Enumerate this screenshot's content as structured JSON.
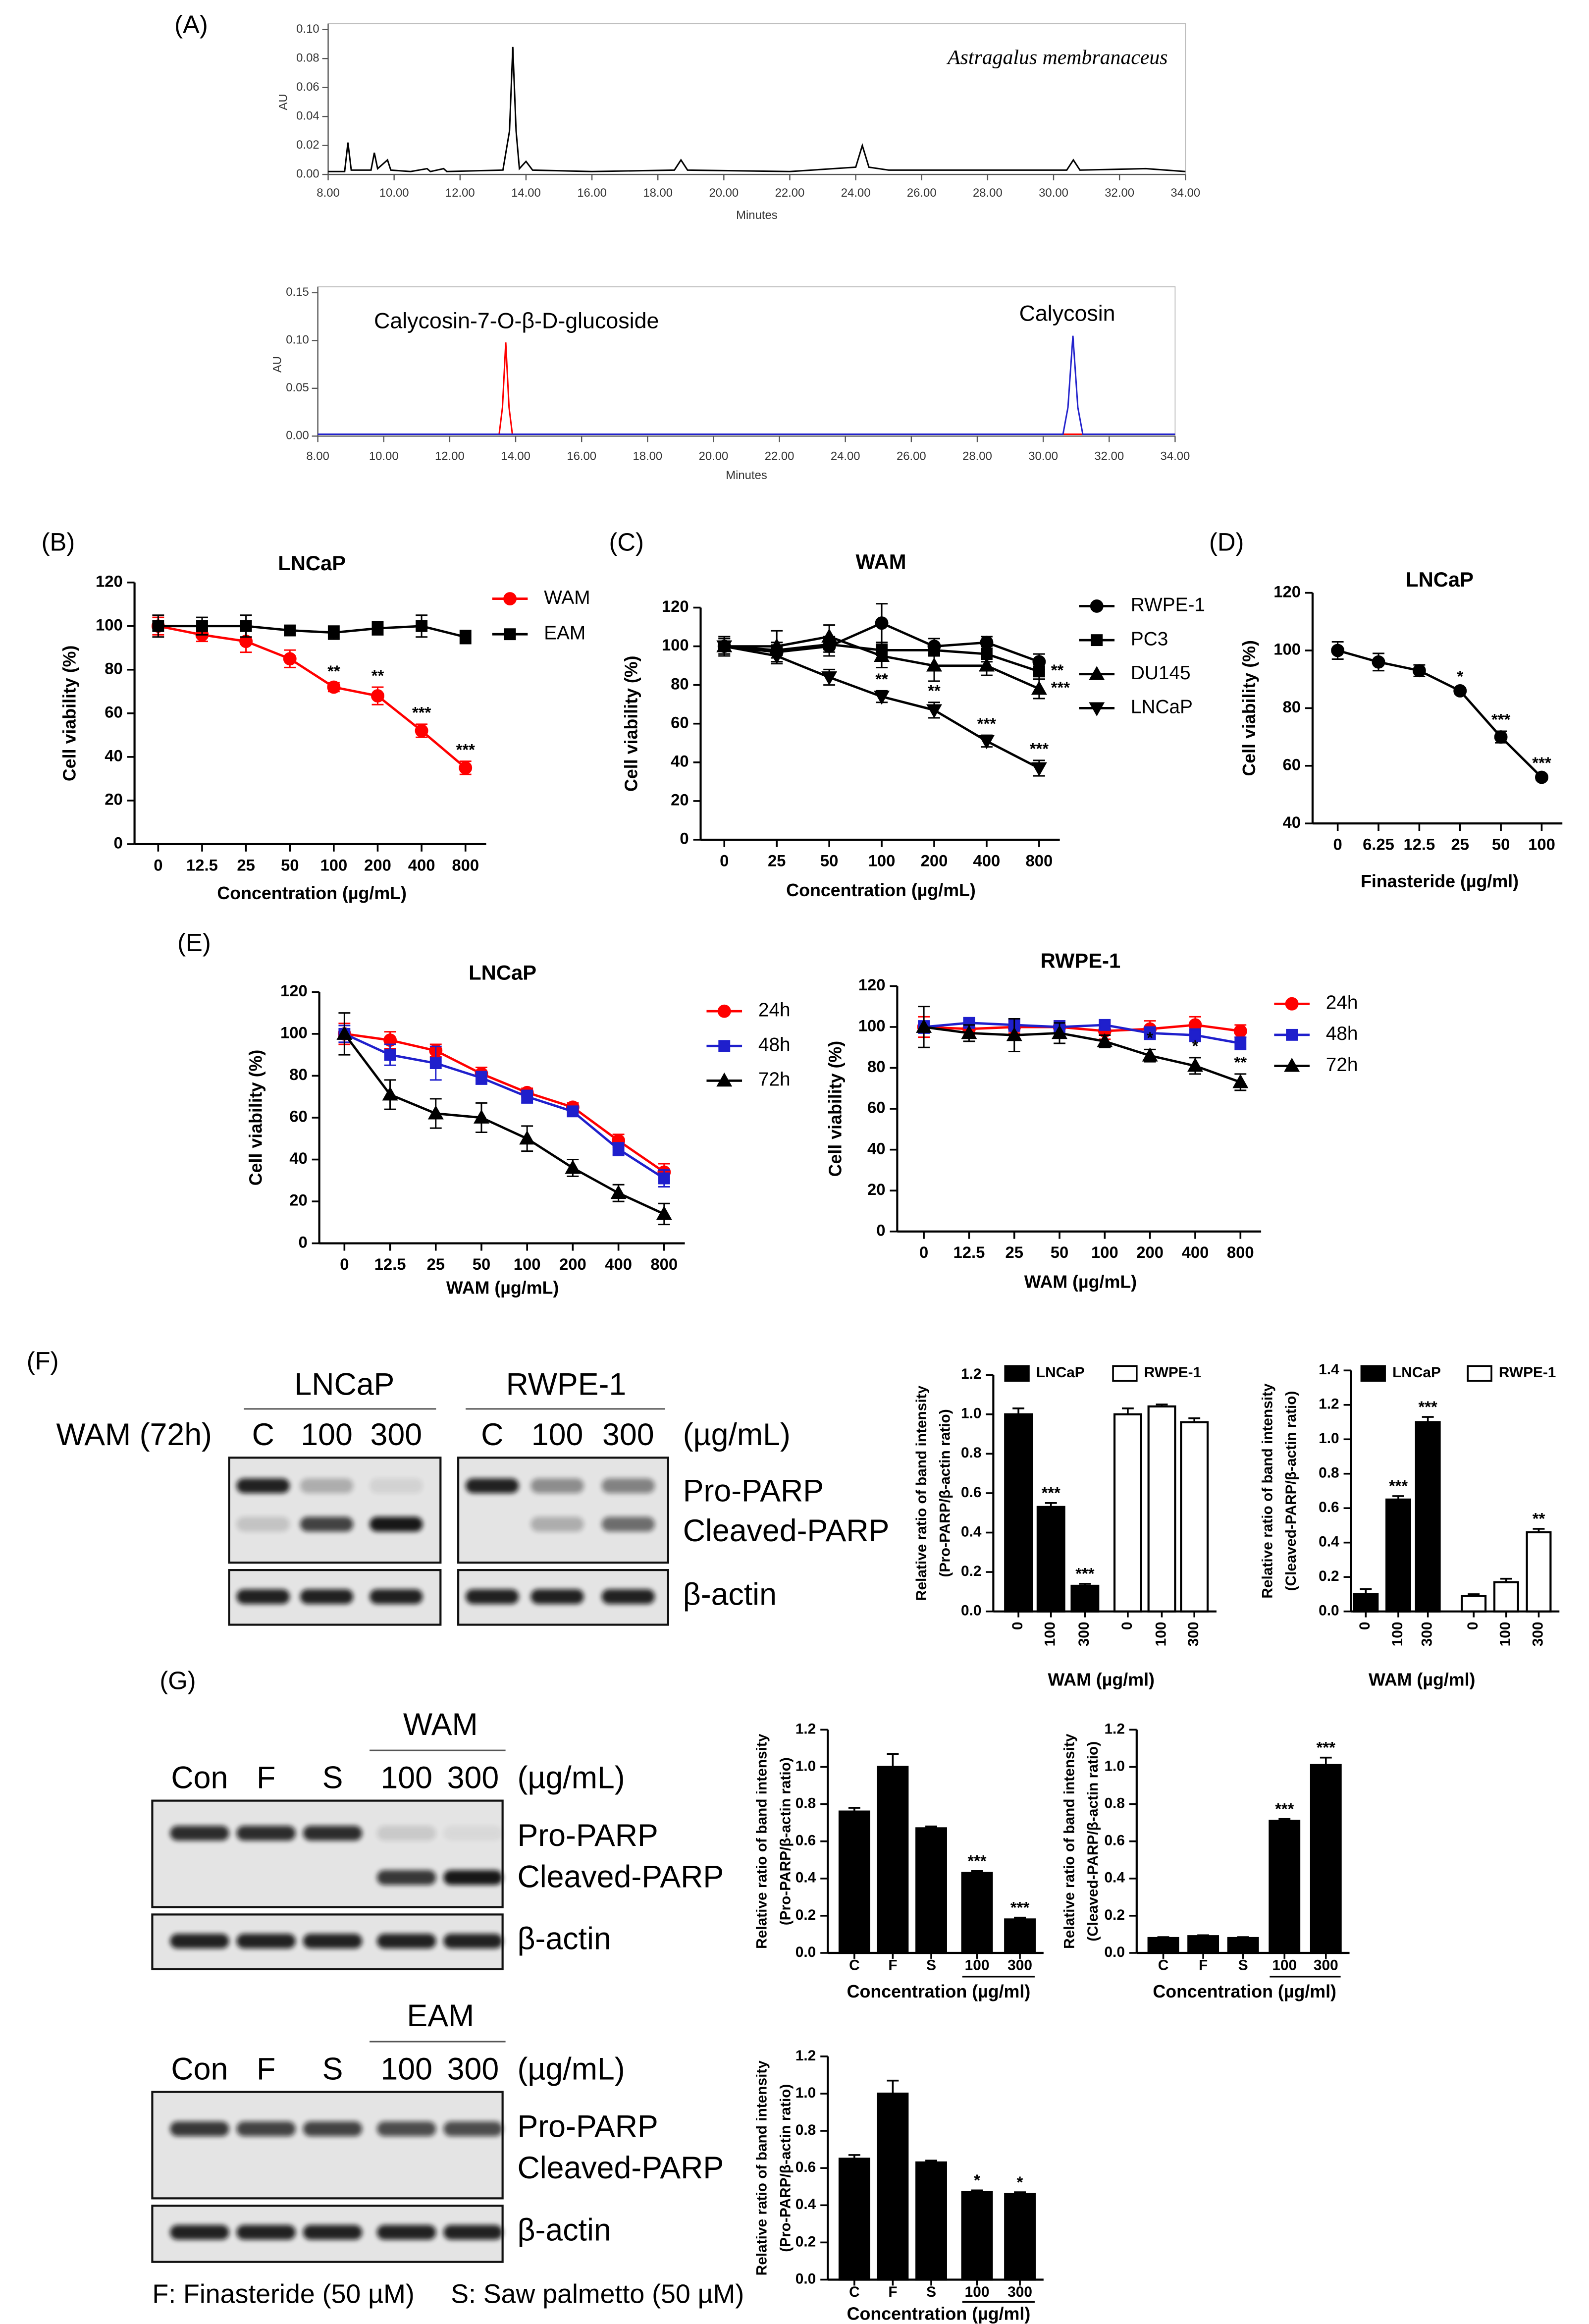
{
  "chart_data": [
    {
      "type": "chromatogram",
      "panel": "(A)",
      "xlabel": "Minutes",
      "ylabel": "AU",
      "xlim": [
        8,
        34
      ],
      "xticks": [
        {
          "value": 8,
          "label": "8.00"
        },
        {
          "value": 10,
          "label": "10.00"
        },
        {
          "value": 12,
          "label": "12.00"
        },
        {
          "value": 14,
          "label": "14.00"
        },
        {
          "value": 16,
          "label": "16.00"
        },
        {
          "value": 18,
          "label": "18.00"
        },
        {
          "value": 20,
          "label": "20.00"
        },
        {
          "value": 22,
          "label": "22.00"
        },
        {
          "value": 24,
          "label": "24.00"
        },
        {
          "value": 26,
          "label": "26.00"
        },
        {
          "value": 28,
          "label": "28.00"
        },
        {
          "value": 30,
          "label": "30.00"
        },
        {
          "value": 32,
          "label": "32.00"
        },
        {
          "value": 34,
          "label": "34.00"
        }
      ],
      "ylim": [
        0,
        0.1
      ],
      "yticks": [
        {
          "value": 0,
          "label": "0.00"
        },
        0.02,
        0.04,
        0.06,
        0.08,
        {
          "value": 0.1,
          "label": "0.10"
        }
      ],
      "series": [
        {
          "name": "Astragalus membranaceus",
          "color": "#000000",
          "x": [
            8,
            8.5,
            8.6,
            8.7,
            9.3,
            9.4,
            9.5,
            9.8,
            9.9,
            10.5,
            11,
            11.1,
            11.5,
            11.6,
            13.3,
            13.5,
            13.6,
            13.7,
            13.8,
            14,
            14.2,
            16,
            18.5,
            18.7,
            18.9,
            22,
            24,
            24.2,
            24.4,
            25,
            30.4,
            30.6,
            30.8,
            32.8,
            34
          ],
          "values": [
            0.002,
            0.002,
            0.022,
            0.003,
            0.003,
            0.015,
            0.004,
            0.01,
            0.003,
            0.002,
            0.004,
            0.002,
            0.004,
            0.002,
            0.003,
            0.03,
            0.088,
            0.03,
            0.004,
            0.009,
            0.003,
            0.002,
            0.003,
            0.01,
            0.003,
            0.002,
            0.005,
            0.02,
            0.005,
            0.003,
            0.003,
            0.01,
            0.003,
            0.004,
            0.002
          ]
        }
      ]
    },
    {
      "type": "chromatogram",
      "xlabel": "Minutes",
      "ylabel": "AU",
      "xlim": [
        8,
        34
      ],
      "xticks": [
        {
          "value": 8,
          "label": "8.00"
        },
        {
          "value": 10,
          "label": "10.00"
        },
        {
          "value": 12,
          "label": "12.00"
        },
        {
          "value": 14,
          "label": "14.00"
        },
        {
          "value": 16,
          "label": "16.00"
        },
        {
          "value": 18,
          "label": "18.00"
        },
        {
          "value": 20,
          "label": "20.00"
        },
        {
          "value": 22,
          "label": "22.00"
        },
        {
          "value": 24,
          "label": "24.00"
        },
        {
          "value": 26,
          "label": "26.00"
        },
        {
          "value": 28,
          "label": "28.00"
        },
        {
          "value": 30,
          "label": "30.00"
        },
        {
          "value": 32,
          "label": "32.00"
        },
        {
          "value": 34,
          "label": "34.00"
        }
      ],
      "ylim": [
        0,
        0.15
      ],
      "yticks": [
        {
          "value": 0,
          "label": "0.00"
        },
        0.05,
        {
          "value": 0.1,
          "label": "0.10"
        },
        0.15
      ],
      "series": [
        {
          "name": "Calycosin-7-O-β-D-glucoside",
          "color": "#ff0000",
          "x": [
            8,
            13.5,
            13.6,
            13.7,
            13.8,
            13.9,
            34
          ],
          "values": [
            0.002,
            0.002,
            0.03,
            0.098,
            0.03,
            0.002,
            0.002
          ]
        },
        {
          "name": "Calycosin",
          "color": "#2222cc",
          "x": [
            8,
            30.6,
            30.75,
            30.9,
            31.05,
            31.2,
            34
          ],
          "values": [
            0.002,
            0.002,
            0.03,
            0.105,
            0.03,
            0.002,
            0.002
          ]
        }
      ]
    },
    {
      "type": "line",
      "panel": "(B)",
      "title": "LNCaP",
      "xlabel": "Concentration (µg/mL)",
      "ylabel": "Cell viability (%)",
      "categories": [
        "0",
        "12.5",
        "25",
        "50",
        "100",
        "200",
        "400",
        "800"
      ],
      "ylim": [
        0,
        120
      ],
      "yticks": [
        0,
        20,
        40,
        60,
        80,
        100,
        120
      ],
      "series": [
        {
          "name": "WAM",
          "color": "#ff0000",
          "marker": "circle",
          "values": [
            100,
            96,
            93,
            85,
            72,
            68,
            52,
            35
          ],
          "errors": [
            4,
            3,
            5,
            4,
            2,
            4,
            3,
            3
          ],
          "significance": [
            null,
            null,
            null,
            null,
            "**",
            "**",
            "***",
            "***"
          ]
        },
        {
          "name": "EAM",
          "color": "#000000",
          "marker": "square",
          "values": [
            100,
            100,
            100,
            98,
            97,
            99,
            100,
            95
          ],
          "errors": [
            5,
            4,
            5,
            2,
            3,
            3,
            5,
            3
          ]
        }
      ]
    },
    {
      "type": "line",
      "panel": "(C)",
      "title": "WAM",
      "xlabel": "Concentration (µg/mL)",
      "ylabel": "Cell viability (%)",
      "categories": [
        "0",
        "25",
        "50",
        "100",
        "200",
        "400",
        "800"
      ],
      "ylim": [
        0,
        120
      ],
      "yticks": [
        0,
        20,
        40,
        60,
        80,
        100,
        120
      ],
      "series": [
        {
          "name": "RWPE-1",
          "color": "#000000",
          "marker": "circle",
          "values": [
            100,
            97,
            100,
            112,
            100,
            102,
            92
          ],
          "errors": [
            5,
            5,
            5,
            10,
            4,
            3,
            4
          ]
        },
        {
          "name": "PC3",
          "color": "#000000",
          "marker": "square",
          "values": [
            100,
            98,
            101,
            98,
            98,
            96,
            87
          ],
          "errors": [
            4,
            4,
            4,
            4,
            3,
            4,
            4
          ],
          "significance": [
            null,
            null,
            null,
            null,
            null,
            null,
            "**"
          ]
        },
        {
          "name": "DU145",
          "color": "#000000",
          "marker": "triangle",
          "values": [
            100,
            100,
            105,
            95,
            90,
            90,
            78
          ],
          "errors": [
            5,
            8,
            6,
            6,
            8,
            5,
            5
          ],
          "significance": [
            null,
            null,
            null,
            null,
            null,
            null,
            "***"
          ]
        },
        {
          "name": "LNCaP",
          "color": "#000000",
          "marker": "triangle-down",
          "values": [
            100,
            95,
            84,
            74,
            67,
            51,
            37
          ],
          "errors": [
            4,
            4,
            4,
            3,
            4,
            3,
            4
          ],
          "significance": [
            null,
            null,
            null,
            "**",
            "**",
            "***",
            "***"
          ]
        }
      ]
    },
    {
      "type": "line",
      "panel": "(D)",
      "title": "LNCaP",
      "xlabel": "Finasteride (µg/ml)",
      "ylabel": "Cell viability (%)",
      "categories": [
        "0",
        "6.25",
        "12.5",
        "25",
        "50",
        "100"
      ],
      "ylim": [
        40,
        120
      ],
      "yticks": [
        40,
        60,
        80,
        100,
        120
      ],
      "color": "#000000",
      "marker": "circle",
      "values": [
        100,
        96,
        93,
        86,
        70,
        56
      ],
      "errors": [
        3,
        3,
        2,
        1,
        2,
        1
      ],
      "significance": [
        null,
        null,
        null,
        "*",
        "***",
        "***"
      ]
    },
    {
      "type": "line",
      "panel": "(E)",
      "title": "LNCaP",
      "xlabel": "WAM (µg/mL)",
      "ylabel": "Cell viability (%)",
      "categories": [
        "0",
        "12.5",
        "25",
        "50",
        "100",
        "200",
        "400",
        "800"
      ],
      "ylim": [
        0,
        120
      ],
      "yticks": [
        0,
        20,
        40,
        60,
        80,
        100,
        120
      ],
      "series": [
        {
          "name": "24h",
          "color": "#ff0000",
          "marker": "circle",
          "values": [
            100,
            97,
            92,
            81,
            72,
            65,
            49,
            34
          ],
          "errors": [
            5,
            4,
            3,
            3,
            2,
            2,
            3,
            4
          ]
        },
        {
          "name": "48h",
          "color": "#1f1fcc",
          "marker": "square",
          "values": [
            100,
            90,
            86,
            79,
            70,
            63,
            45,
            31
          ],
          "errors": [
            4,
            5,
            8,
            3,
            3,
            2,
            3,
            4
          ]
        },
        {
          "name": "72h",
          "color": "#000000",
          "marker": "triangle",
          "values": [
            100,
            71,
            62,
            60,
            50,
            36,
            24,
            14
          ],
          "errors": [
            10,
            7,
            7,
            7,
            6,
            4,
            4,
            5
          ]
        }
      ]
    },
    {
      "type": "line",
      "title": "RWPE-1",
      "xlabel": "WAM (µg/mL)",
      "ylabel": "Cell viability (%)",
      "categories": [
        "0",
        "12.5",
        "25",
        "50",
        "100",
        "200",
        "400",
        "800"
      ],
      "ylim": [
        0,
        120
      ],
      "yticks": [
        0,
        20,
        40,
        60,
        80,
        100,
        120
      ],
      "series": [
        {
          "name": "24h",
          "color": "#ff0000",
          "marker": "circle",
          "values": [
            100,
            99,
            100,
            100,
            98,
            99,
            101,
            98
          ],
          "errors": [
            5,
            3,
            3,
            3,
            4,
            4,
            4,
            3
          ]
        },
        {
          "name": "48h",
          "color": "#1f1fcc",
          "marker": "square",
          "values": [
            100,
            102,
            101,
            100,
            101,
            97,
            96,
            92
          ],
          "errors": [
            3,
            2,
            3,
            3,
            2,
            3,
            3,
            3
          ]
        },
        {
          "name": "72h",
          "color": "#000000",
          "marker": "triangle",
          "values": [
            100,
            97,
            96,
            97,
            93,
            86,
            81,
            73
          ],
          "errors": [
            10,
            4,
            8,
            5,
            3,
            3,
            4,
            4
          ],
          "significance": [
            null,
            null,
            null,
            null,
            null,
            "*",
            "*",
            "**"
          ]
        }
      ]
    },
    {
      "type": "bar",
      "xlabel": "WAM (µg/ml)",
      "ylabel": [
        "Relative ratio of band intensity",
        "(Pro-PARP/β-actin ratio)"
      ],
      "categories": [
        "0",
        "100",
        "300"
      ],
      "ylim": [
        0,
        1.2
      ],
      "yticks": [
        {
          "value": 0,
          "label": "0.0"
        },
        0.2,
        0.4,
        0.6,
        0.8,
        {
          "value": 1,
          "label": "1.0"
        },
        1.2
      ],
      "series": [
        {
          "name": "LNCaP",
          "color": "#000000",
          "values": [
            1.0,
            0.53,
            0.13
          ],
          "errors": [
            0.03,
            0.02,
            0.01
          ],
          "significance": [
            null,
            "***",
            "***"
          ]
        },
        {
          "name": "RWPE-1",
          "color": "#ffffff",
          "values": [
            1.0,
            1.04,
            0.96
          ],
          "errors": [
            0.03,
            0.01,
            0.02
          ]
        }
      ]
    },
    {
      "type": "bar",
      "xlabel": "WAM (µg/ml)",
      "ylabel": [
        "Relative ratio of band intensity",
        "(Cleaved-PARP/β-actin ratio)"
      ],
      "categories": [
        "0",
        "100",
        "300"
      ],
      "ylim": [
        0,
        1.4
      ],
      "yticks": [
        {
          "value": 0,
          "label": "0.0"
        },
        0.2,
        0.4,
        0.6,
        0.8,
        {
          "value": 1,
          "label": "1.0"
        },
        1.2,
        1.4
      ],
      "series": [
        {
          "name": "LNCaP",
          "color": "#000000",
          "values": [
            0.1,
            0.65,
            1.1
          ],
          "errors": [
            0.03,
            0.02,
            0.03
          ],
          "significance": [
            null,
            "***",
            "***"
          ]
        },
        {
          "name": "RWPE-1",
          "color": "#ffffff",
          "values": [
            0.09,
            0.17,
            0.46
          ],
          "errors": [
            0.01,
            0.02,
            0.02
          ],
          "significance": [
            null,
            null,
            "**"
          ]
        }
      ]
    },
    {
      "type": "bar",
      "xlabel": "Concentration (µg/ml)",
      "ylabel": [
        "Relative ratio of band intensity",
        "(Pro-PARP/β-actin ratio)"
      ],
      "categories": [
        "C",
        "F",
        "S",
        "100",
        "300"
      ],
      "ylim": [
        0,
        1.2
      ],
      "yticks": [
        {
          "value": 0,
          "label": "0.0"
        },
        0.2,
        0.4,
        0.6,
        0.8,
        {
          "value": 1,
          "label": "1.0"
        },
        1.2
      ],
      "color": "#000000",
      "values": [
        0.76,
        1.0,
        0.67,
        0.43,
        0.18
      ],
      "errors": [
        0.02,
        0.07,
        0.01,
        0.01,
        0.01
      ],
      "significance": [
        null,
        null,
        null,
        "***",
        "***"
      ]
    },
    {
      "type": "bar",
      "xlabel": "Concentration (µg/ml)",
      "ylabel": [
        "Relative ratio of band intensity",
        "(Cleaved-PARP/β-actin ratio)"
      ],
      "categories": [
        "C",
        "F",
        "S",
        "100",
        "300"
      ],
      "ylim": [
        0,
        1.2
      ],
      "yticks": [
        {
          "value": 0,
          "label": "0.0"
        },
        0.2,
        0.4,
        0.6,
        0.8,
        {
          "value": 1,
          "label": "1.0"
        },
        1.2
      ],
      "color": "#000000",
      "values": [
        0.08,
        0.09,
        0.08,
        0.71,
        1.01
      ],
      "errors": [
        0.005,
        0.005,
        0.005,
        0.01,
        0.04
      ],
      "significance": [
        null,
        null,
        null,
        "***",
        "***"
      ]
    },
    {
      "type": "bar",
      "xlabel": "Concentration (µg/ml)",
      "ylabel": [
        "Relative ratio of band intensity",
        "(Pro-PARP/β-actin ratio)"
      ],
      "categories": [
        "C",
        "F",
        "S",
        "100",
        "300"
      ],
      "ylim": [
        0,
        1.2
      ],
      "yticks": [
        {
          "value": 0,
          "label": "0.0"
        },
        0.2,
        0.4,
        0.6,
        0.8,
        {
          "value": 1,
          "label": "1.0"
        },
        1.2
      ],
      "color": "#000000",
      "values": [
        0.65,
        1.0,
        0.63,
        0.47,
        0.46
      ],
      "errors": [
        0.02,
        0.07,
        0.01,
        0.01,
        0.01
      ],
      "significance": [
        null,
        null,
        null,
        "*",
        "*"
      ]
    }
  ],
  "blots": {
    "F": {
      "panel": "(F)",
      "treatment": "WAM (72h)",
      "unit": "(µg/mL)",
      "groups": [
        {
          "name": "LNCaP",
          "lanes": [
            "C",
            "100",
            "300"
          ]
        },
        {
          "name": "RWPE-1",
          "lanes": [
            "C",
            "100",
            "300"
          ]
        }
      ],
      "bands": [
        "Pro-PARP",
        "Cleaved-PARP",
        "β-actin"
      ]
    },
    "G": {
      "panel": "(G)",
      "blocks": [
        {
          "treatment": "WAM",
          "lanes": [
            "Con",
            "F",
            "S",
            "100",
            "300"
          ],
          "unit": "(µg/mL)",
          "bands": [
            "Pro-PARP",
            "Cleaved-PARP",
            "β-actin"
          ]
        },
        {
          "treatment": "EAM",
          "lanes": [
            "Con",
            "F",
            "S",
            "100",
            "300"
          ],
          "unit": "(µg/mL)",
          "bands": [
            "Pro-PARP",
            "Cleaved-PARP",
            "β-actin"
          ]
        }
      ],
      "footnotes": [
        "F: Finasteride (50 µM)",
        "S: Saw palmetto (50 µM)"
      ]
    }
  }
}
